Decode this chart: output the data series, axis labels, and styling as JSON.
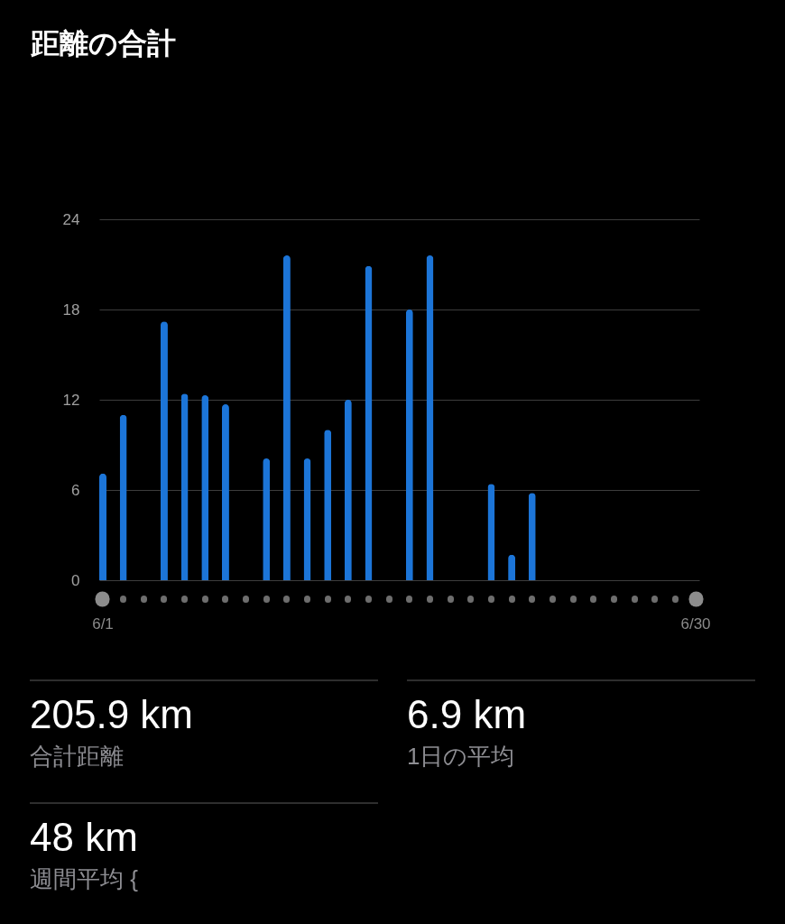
{
  "chart_data": [
    {
      "type": "bar",
      "title": "距離の合計",
      "categories": [
        "6/1",
        null,
        null,
        null,
        null,
        null,
        null,
        null,
        null,
        null,
        null,
        null,
        null,
        null,
        null,
        null,
        null,
        null,
        null,
        null,
        null,
        null,
        null,
        null,
        null,
        null,
        null,
        null,
        null,
        "6/30"
      ],
      "values": [
        7.1,
        11.0,
        null,
        17.2,
        12.4,
        12.3,
        11.7,
        null,
        8.1,
        21.6,
        8.1,
        10.0,
        12.0,
        20.9,
        null,
        18.0,
        21.6,
        null,
        null,
        6.4,
        1.7,
        5.8,
        null,
        null,
        null,
        null,
        null,
        null,
        null,
        null
      ],
      "color": "#1c75d8",
      "ylim": [
        0,
        24
      ],
      "yticks": [
        0,
        6,
        12,
        18,
        24
      ],
      "grid": "y"
    },
    {
      "type": "other",
      "annotations": [
        "205.9 km",
        "合計距離",
        "6.9 km",
        "1日の平均",
        "48 km",
        "週間平均 {"
      ]
    }
  ]
}
